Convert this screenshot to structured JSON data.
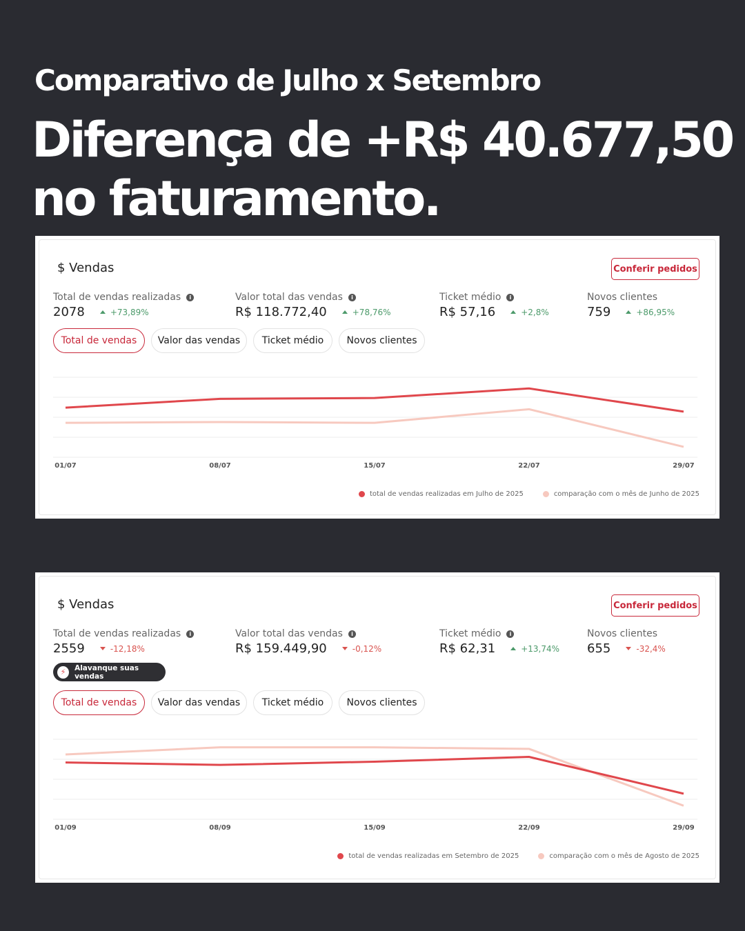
{
  "header": {
    "subtitle": "Comparativo de Julho x Setembro",
    "title_lines": [
      "Diferença de +R$ 40.677,50",
      "no faturamento."
    ]
  },
  "panels": [
    {
      "title": "$ Vendas",
      "button": "Conferir pedidos",
      "metrics": [
        {
          "label": "Total de vendas realizadas",
          "info": true,
          "value": "2078",
          "change": "+73,89%",
          "trend": "up"
        },
        {
          "label": "Valor total das vendas",
          "info": true,
          "value": "R$ 118.772,40",
          "change": "+78,76%",
          "trend": "up"
        },
        {
          "label": "Ticket médio",
          "info": true,
          "value": "R$ 57,16",
          "change": "+2,8%",
          "trend": "up"
        },
        {
          "label": "Novos clientes",
          "info": false,
          "value": "759",
          "change": "+86,95%",
          "trend": "up"
        }
      ],
      "tabs": [
        "Total de vendas",
        "Valor das vendas",
        "Ticket médio",
        "Novos clientes"
      ],
      "active_tab": 0
    },
    {
      "title": "$ Vendas",
      "button": "Conferir pedidos",
      "metrics": [
        {
          "label": "Total de vendas realizadas",
          "info": true,
          "value": "2559",
          "change": "-12,18%",
          "trend": "down"
        },
        {
          "label": "Valor total das vendas",
          "info": true,
          "value": "R$ 159.449,90",
          "change": "-0,12%",
          "trend": "down"
        },
        {
          "label": "Ticket médio",
          "info": true,
          "value": "R$ 62,31",
          "change": "+13,74%",
          "trend": "up"
        },
        {
          "label": "Novos clientes",
          "info": false,
          "value": "655",
          "change": "-32,4%",
          "trend": "down"
        }
      ],
      "badge": "Alavanque suas vendas",
      "tabs": [
        "Total de vendas",
        "Valor das vendas",
        "Ticket médio",
        "Novos clientes"
      ],
      "active_tab": 0
    }
  ],
  "chart_data": [
    {
      "type": "line",
      "categories": [
        "01/07",
        "08/07",
        "15/07",
        "22/07",
        "29/07"
      ],
      "series": [
        {
          "name": "total de vendas realizadas em Julho de 2025",
          "color": "#e0474c",
          "values": [
            62,
            73,
            74,
            86,
            57
          ]
        },
        {
          "name": "comparação com o mês de Junho de 2025",
          "color": "#f7c9bf",
          "values": [
            43,
            44,
            43,
            60,
            13
          ]
        }
      ],
      "ylim": [
        0,
        100
      ],
      "yticks": [
        0,
        25,
        50,
        75,
        100
      ],
      "grid": true
    },
    {
      "type": "line",
      "categories": [
        "01/09",
        "08/09",
        "15/09",
        "22/09",
        "29/09"
      ],
      "series": [
        {
          "name": "total de vendas realizadas em Setembro de 2025",
          "color": "#e0474c",
          "values": [
            71,
            68,
            72,
            78,
            32
          ]
        },
        {
          "name": "comparação com o mês de Agosto de 2025",
          "color": "#f7c9bf",
          "values": [
            81,
            90,
            90,
            88,
            17
          ]
        }
      ],
      "ylim": [
        0,
        100
      ],
      "yticks": [
        0,
        25,
        50,
        75,
        100
      ],
      "grid": true
    }
  ]
}
